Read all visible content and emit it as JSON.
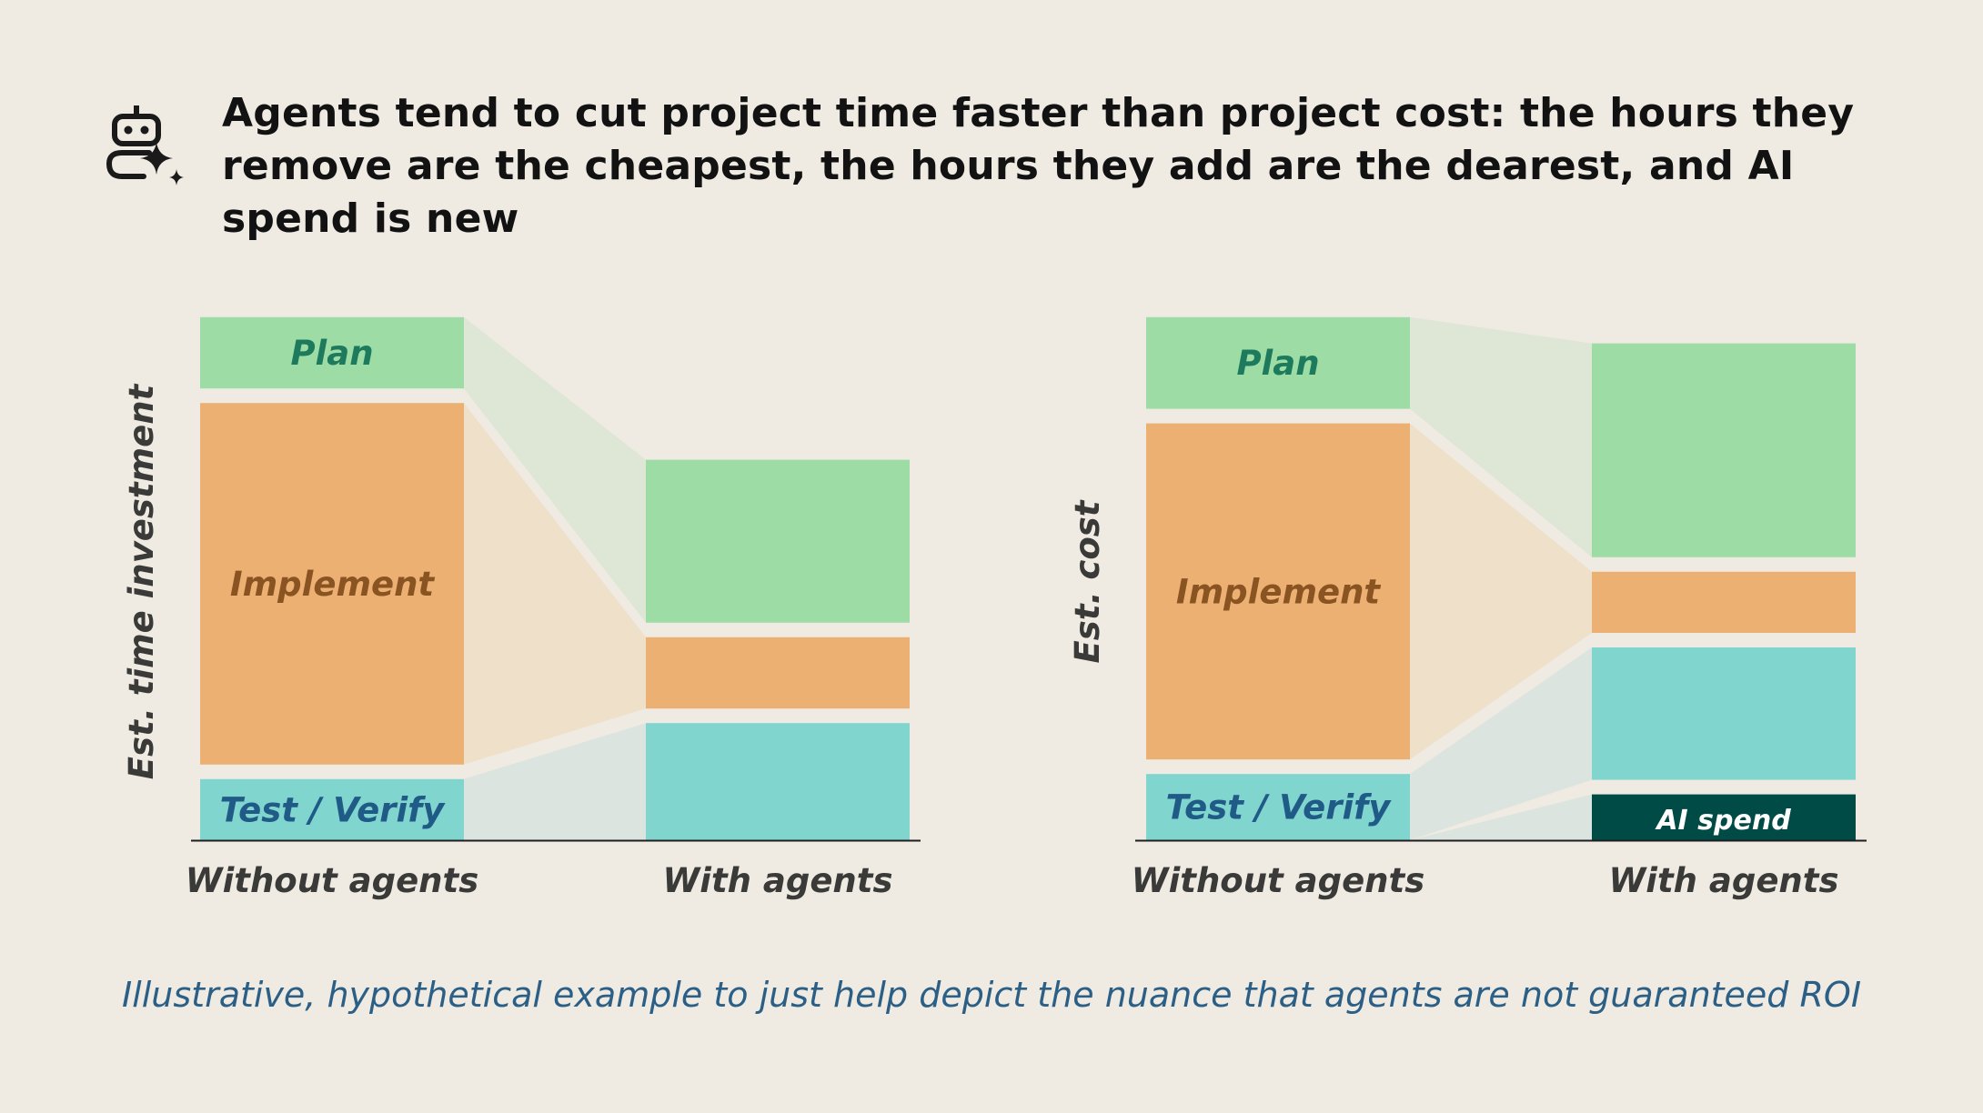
{
  "header": {
    "title": "Agents tend to cut project time faster than project cost: the hours they remove are the cheapest, the hours they add are the dearest, and AI spend is new",
    "icon": "robot-sparkle-icon"
  },
  "footnote": "Illustrative, hypothetical example to just help depict the nuance that agents are not guaranteed ROI",
  "colors": {
    "plan": "#9ddca5",
    "implement": "#ecb073",
    "test_verify": "#80d5ce",
    "ai_spend": "#004b45",
    "plan_flow": "#dee6d6",
    "implement_flow": "#efe0ca",
    "test_flow": "#dbe4de",
    "plan_text": "#1d7a5d",
    "implement_text": "#8a5322",
    "test_text": "#1f5b86",
    "ai_text": "#ffffff",
    "axis": "#1e1e1e"
  },
  "chart_data": [
    {
      "type": "bar",
      "stacked": true,
      "ylabel": "Est. time investment",
      "categories": [
        "Without agents",
        "With agents"
      ],
      "series": [
        {
          "name": "Test / Verify",
          "key": "test_verify",
          "values": [
            12,
            23
          ]
        },
        {
          "name": "Implement",
          "key": "implement",
          "values": [
            71,
            14
          ]
        },
        {
          "name": "Plan",
          "key": "plan",
          "values": [
            14,
            32
          ]
        }
      ],
      "ylim": [
        0,
        104
      ],
      "grid": false,
      "legend": "none"
    },
    {
      "type": "bar",
      "stacked": true,
      "ylabel": "Est. cost",
      "categories": [
        "Without agents",
        "With agents"
      ],
      "series": [
        {
          "name": "AI spend",
          "key": "ai_spend",
          "values": [
            0,
            9
          ]
        },
        {
          "name": "Test / Verify",
          "key": "test_verify",
          "values": [
            13,
            26
          ]
        },
        {
          "name": "Implement",
          "key": "implement",
          "values": [
            66,
            12
          ]
        },
        {
          "name": "Plan",
          "key": "plan",
          "values": [
            18,
            42
          ]
        }
      ],
      "ylim": [
        0,
        104
      ],
      "grid": false,
      "legend": "none"
    }
  ]
}
